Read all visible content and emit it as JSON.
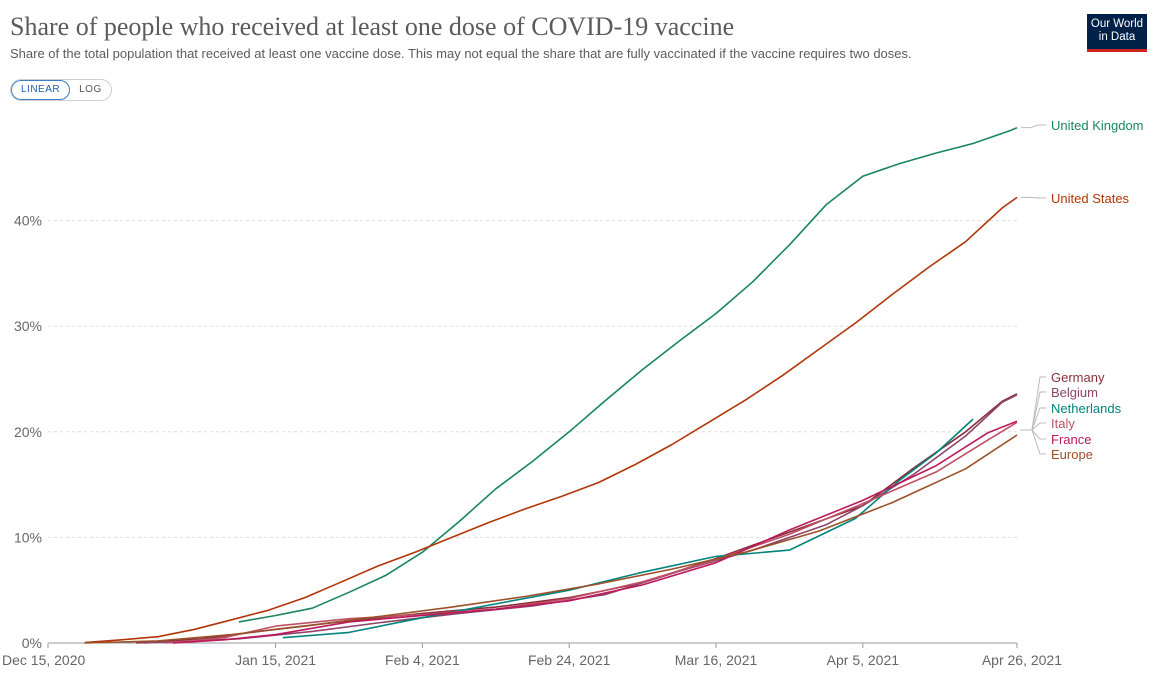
{
  "header": {
    "title": "Share of people who received at least one dose of COVID-19 vaccine",
    "subtitle": "Share of the total population that received at least one vaccine dose. This may not equal the share that are fully vaccinated if the vaccine requires two doses.",
    "logo_line1": "Our World",
    "logo_line2": "in Data"
  },
  "controls": {
    "linear_label": "LINEAR",
    "log_label": "LOG",
    "selected": "LINEAR"
  },
  "colors": {
    "United Kingdom": "#18855e",
    "United States": "#b13507",
    "Germany": "#883039",
    "Belgium": "#8c4569",
    "Netherlands": "#00847e",
    "Italy": "#c15065",
    "France": "#be185d",
    "Europe": "#9a5129"
  },
  "chart_data": {
    "type": "line",
    "title": "Share of people who received at least one dose of COVID-19 vaccine",
    "xlabel": "",
    "ylabel": "",
    "x_ticks": [
      "Dec 15, 2020",
      "Jan 15, 2021",
      "Feb 4, 2021",
      "Feb 24, 2021",
      "Mar 16, 2021",
      "Apr 5, 2021",
      "Apr 26, 2021"
    ],
    "y_ticks": [
      "0%",
      "10%",
      "20%",
      "30%",
      "40%"
    ],
    "ylim": [
      0,
      50
    ],
    "x_start": "2020-12-15",
    "x_end": "2021-04-26",
    "grid": true,
    "legend": "right",
    "series": [
      {
        "name": "United Kingdom",
        "points": [
          [
            "2021-01-10",
            2.0
          ],
          [
            "2021-01-15",
            2.6
          ],
          [
            "2021-01-20",
            3.3
          ],
          [
            "2021-01-25",
            4.8
          ],
          [
            "2021-01-30",
            6.4
          ],
          [
            "2021-02-04",
            8.6
          ],
          [
            "2021-02-09",
            11.5
          ],
          [
            "2021-02-14",
            14.6
          ],
          [
            "2021-02-19",
            17.2
          ],
          [
            "2021-02-24",
            20.0
          ],
          [
            "2021-03-01",
            23.0
          ],
          [
            "2021-03-06",
            25.9
          ],
          [
            "2021-03-11",
            28.6
          ],
          [
            "2021-03-16",
            31.2
          ],
          [
            "2021-03-21",
            34.2
          ],
          [
            "2021-03-26",
            37.7
          ],
          [
            "2021-03-31",
            41.5
          ],
          [
            "2021-04-05",
            44.2
          ],
          [
            "2021-04-10",
            45.4
          ],
          [
            "2021-04-15",
            46.4
          ],
          [
            "2021-04-20",
            47.3
          ],
          [
            "2021-04-25",
            48.5
          ],
          [
            "2021-04-26",
            48.8
          ]
        ]
      },
      {
        "name": "United States",
        "points": [
          [
            "2020-12-20",
            0.05
          ],
          [
            "2020-12-25",
            0.3
          ],
          [
            "2020-12-30",
            0.6
          ],
          [
            "2021-01-04",
            1.3
          ],
          [
            "2021-01-09",
            2.2
          ],
          [
            "2021-01-14",
            3.1
          ],
          [
            "2021-01-19",
            4.3
          ],
          [
            "2021-01-24",
            5.8
          ],
          [
            "2021-01-29",
            7.3
          ],
          [
            "2021-02-03",
            8.6
          ],
          [
            "2021-02-08",
            10.0
          ],
          [
            "2021-02-13",
            11.4
          ],
          [
            "2021-02-18",
            12.7
          ],
          [
            "2021-02-23",
            13.9
          ],
          [
            "2021-02-28",
            15.2
          ],
          [
            "2021-03-05",
            16.9
          ],
          [
            "2021-03-10",
            18.8
          ],
          [
            "2021-03-15",
            20.9
          ],
          [
            "2021-03-20",
            23.0
          ],
          [
            "2021-03-25",
            25.3
          ],
          [
            "2021-03-30",
            27.8
          ],
          [
            "2021-04-04",
            30.3
          ],
          [
            "2021-04-09",
            33.0
          ],
          [
            "2021-04-14",
            35.6
          ],
          [
            "2021-04-19",
            38.0
          ],
          [
            "2021-04-24",
            41.2
          ],
          [
            "2021-04-26",
            42.2
          ]
        ]
      },
      {
        "name": "Germany",
        "points": [
          [
            "2020-12-27",
            0.0
          ],
          [
            "2021-01-05",
            0.4
          ],
          [
            "2021-01-15",
            1.3
          ],
          [
            "2021-01-25",
            2.1
          ],
          [
            "2021-02-04",
            2.8
          ],
          [
            "2021-02-14",
            3.4
          ],
          [
            "2021-02-24",
            4.3
          ],
          [
            "2021-03-06",
            5.7
          ],
          [
            "2021-03-16",
            8.0
          ],
          [
            "2021-03-26",
            10.5
          ],
          [
            "2021-04-05",
            13.0
          ],
          [
            "2021-04-12",
            16.6
          ],
          [
            "2021-04-19",
            20.0
          ],
          [
            "2021-04-24",
            22.9
          ],
          [
            "2021-04-26",
            23.6
          ]
        ]
      },
      {
        "name": "Belgium",
        "points": [
          [
            "2020-12-28",
            0.0
          ],
          [
            "2021-01-10",
            0.4
          ],
          [
            "2021-01-20",
            1.1
          ],
          [
            "2021-01-30",
            2.0
          ],
          [
            "2021-02-09",
            2.8
          ],
          [
            "2021-02-19",
            3.5
          ],
          [
            "2021-03-01",
            4.6
          ],
          [
            "2021-03-11",
            6.8
          ],
          [
            "2021-03-21",
            8.8
          ],
          [
            "2021-03-31",
            11.2
          ],
          [
            "2021-04-05",
            13.0
          ],
          [
            "2021-04-12",
            16.0
          ],
          [
            "2021-04-19",
            19.6
          ],
          [
            "2021-04-24",
            22.8
          ],
          [
            "2021-04-26",
            23.5
          ]
        ]
      },
      {
        "name": "Netherlands",
        "points": [
          [
            "2021-01-16",
            0.5
          ],
          [
            "2021-01-25",
            1.0
          ],
          [
            "2021-02-04",
            2.4
          ],
          [
            "2021-02-14",
            3.7
          ],
          [
            "2021-02-24",
            5.0
          ],
          [
            "2021-03-06",
            6.7
          ],
          [
            "2021-03-16",
            8.2
          ],
          [
            "2021-03-26",
            8.8
          ],
          [
            "2021-04-04",
            11.8
          ],
          [
            "2021-04-10",
            15.4
          ],
          [
            "2021-04-15",
            18.0
          ],
          [
            "2021-04-20",
            21.2
          ]
        ]
      },
      {
        "name": "Italy",
        "points": [
          [
            "2020-12-31",
            0.0
          ],
          [
            "2021-01-08",
            0.5
          ],
          [
            "2021-01-15",
            1.6
          ],
          [
            "2021-01-25",
            2.3
          ],
          [
            "2021-02-04",
            2.7
          ],
          [
            "2021-02-14",
            3.2
          ],
          [
            "2021-02-24",
            4.2
          ],
          [
            "2021-03-06",
            5.8
          ],
          [
            "2021-03-16",
            7.9
          ],
          [
            "2021-03-26",
            10.3
          ],
          [
            "2021-04-05",
            13.2
          ],
          [
            "2021-04-15",
            16.2
          ],
          [
            "2021-04-22",
            19.2
          ],
          [
            "2021-04-26",
            20.9
          ]
        ]
      },
      {
        "name": "France",
        "points": [
          [
            "2021-01-01",
            0.0
          ],
          [
            "2021-01-08",
            0.3
          ],
          [
            "2021-01-15",
            0.8
          ],
          [
            "2021-01-25",
            2.0
          ],
          [
            "2021-02-04",
            2.6
          ],
          [
            "2021-02-14",
            3.2
          ],
          [
            "2021-02-24",
            4.0
          ],
          [
            "2021-03-06",
            5.5
          ],
          [
            "2021-03-16",
            7.6
          ],
          [
            "2021-03-26",
            10.7
          ],
          [
            "2021-04-05",
            13.5
          ],
          [
            "2021-04-15",
            16.8
          ],
          [
            "2021-04-22",
            19.9
          ],
          [
            "2021-04-26",
            21.0
          ]
        ]
      },
      {
        "name": "Europe",
        "points": [
          [
            "2020-12-20",
            0.0
          ],
          [
            "2020-12-30",
            0.2
          ],
          [
            "2021-01-09",
            0.8
          ],
          [
            "2021-01-19",
            1.6
          ],
          [
            "2021-01-29",
            2.5
          ],
          [
            "2021-02-08",
            3.4
          ],
          [
            "2021-02-18",
            4.4
          ],
          [
            "2021-02-28",
            5.6
          ],
          [
            "2021-03-10",
            7.0
          ],
          [
            "2021-03-20",
            8.6
          ],
          [
            "2021-03-30",
            10.6
          ],
          [
            "2021-04-09",
            13.3
          ],
          [
            "2021-04-19",
            16.5
          ],
          [
            "2021-04-26",
            19.7
          ]
        ]
      }
    ],
    "legend_order": [
      "Germany",
      "Belgium",
      "Netherlands",
      "Italy",
      "France",
      "Europe"
    ]
  }
}
